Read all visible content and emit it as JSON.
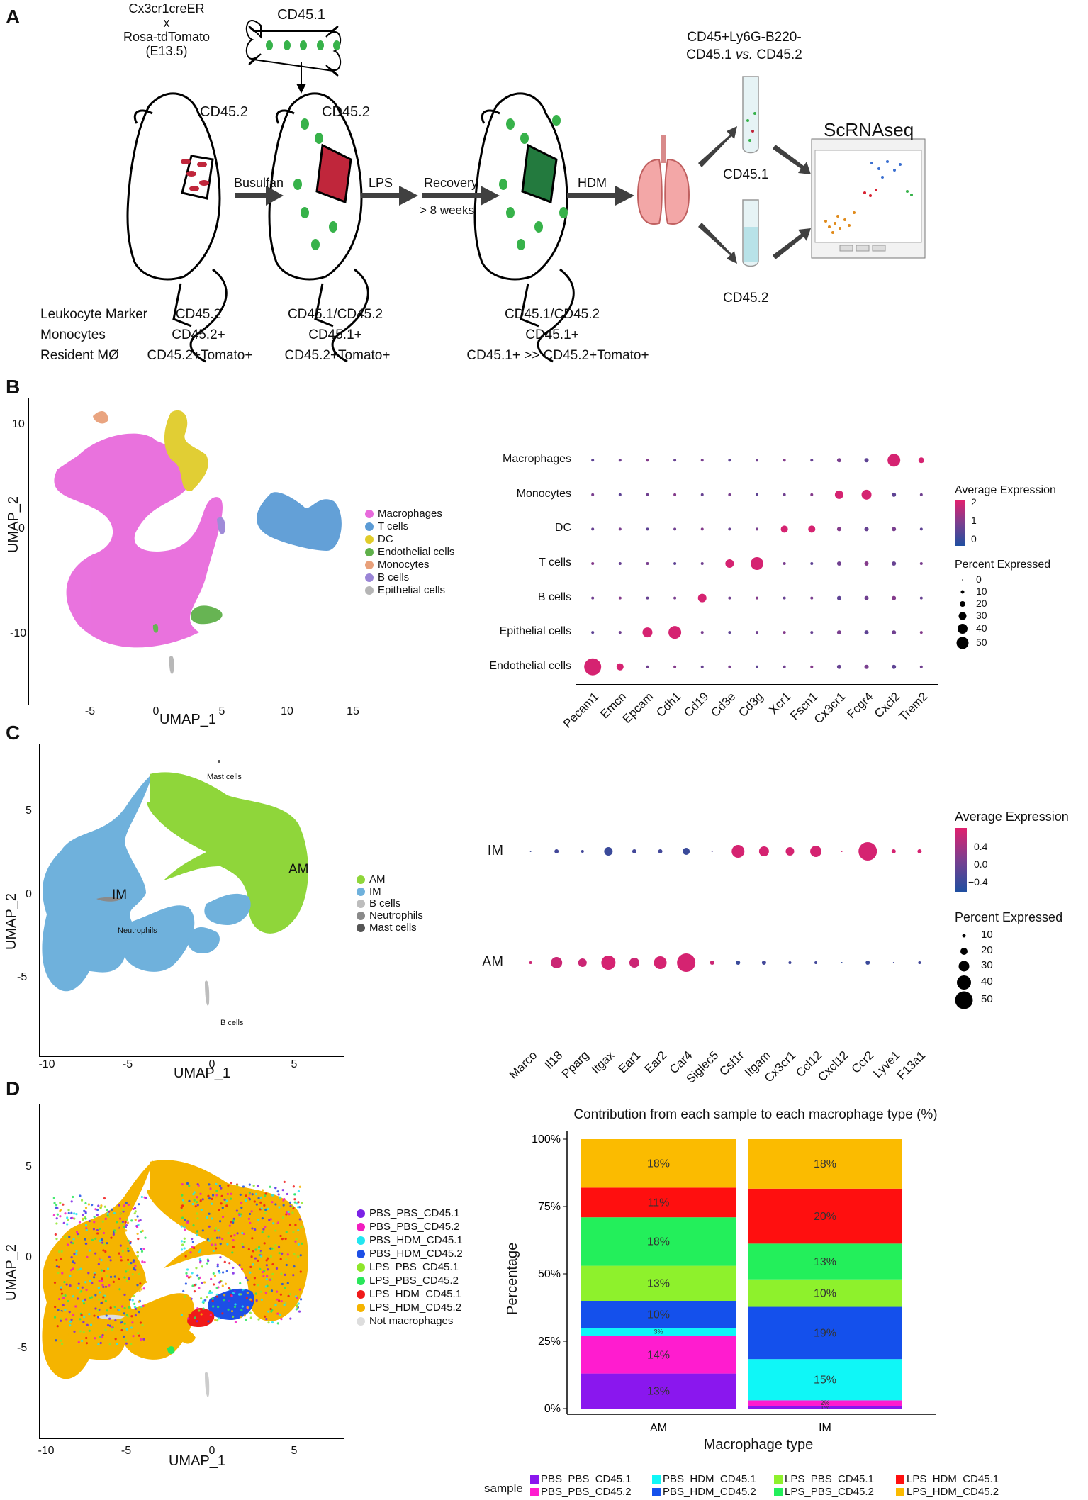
{
  "panelA": {
    "letter": "A",
    "genotype": [
      "Cx3cr1creER",
      "x",
      "Rosa-tdTomato",
      "(E13.5)"
    ],
    "bone_label": "CD45.1",
    "mouse1_label": "CD45.2",
    "mouse2_label": "CD45.2",
    "busulfan": "Busulfan",
    "lps": "LPS",
    "recovery": "Recovery",
    "weeks": "> 8 weeks",
    "hdm": "HDM",
    "sort_label_1": "CD45+Ly6G-B220-",
    "sort_label_2a": "CD45.1 ",
    "sort_label_2b": "vs.",
    "sort_label_2c": " CD45.2",
    "tube1": "CD45.1",
    "tube2": "CD45.2",
    "scrnaseq": "ScRNAseq",
    "table": {
      "row_labels": [
        "Leukocyte Marker",
        "Monocytes",
        "Resident MØ"
      ],
      "col1": [
        "CD45.2",
        "CD45.2+",
        "CD45.2+Tomato+"
      ],
      "col2": [
        "CD45.1/CD45.2",
        "CD45.1+",
        "CD45.2+Tomato+"
      ],
      "col3": [
        "CD45.1/CD45.2",
        "CD45.1+",
        "CD45.1+ >> CD45.2+Tomato+"
      ]
    }
  },
  "panelB": {
    "letter": "B",
    "umap": {
      "xlabel": "UMAP_1",
      "ylabel": "UMAP_2",
      "xticks": [
        "-5",
        "0",
        "5",
        "10",
        "15"
      ],
      "yticks": [
        "10",
        "0",
        "-10"
      ],
      "legend": [
        {
          "name": "Macrophages",
          "color": "#e86bdc"
        },
        {
          "name": "T cells",
          "color": "#5b9bd5"
        },
        {
          "name": "DC",
          "color": "#e0cc2a"
        },
        {
          "name": "Endothelial cells",
          "color": "#5fb04a"
        },
        {
          "name": "Monocytes",
          "color": "#e8a07a"
        },
        {
          "name": "B cells",
          "color": "#9a85d6"
        },
        {
          "name": "Epithelial cells",
          "color": "#b5b5b5"
        }
      ]
    },
    "dotplot": {
      "rows": [
        "Macrophages",
        "Monocytes",
        "DC",
        "T cells",
        "B cells",
        "Epithelial cells",
        "Endothelial cells"
      ],
      "genes": [
        "Pecam1",
        "Emcn",
        "Epcam",
        "Cdh1",
        "Cd19",
        "Cd3e",
        "Cd3g",
        "Xcr1",
        "Fscn1",
        "Cx3cr1",
        "Fcgr4",
        "Cxcl2",
        "Trem2"
      ],
      "avg_title": "Average Expression",
      "avg_ticks": [
        "2",
        "1",
        "0"
      ],
      "pct_title": "Percent Expressed",
      "pct_ticks": [
        "0",
        "10",
        "20",
        "30",
        "40",
        "50"
      ]
    }
  },
  "panelC": {
    "letter": "C",
    "umap": {
      "xlabel": "UMAP_1",
      "ylabel": "UMAP_2",
      "xticks": [
        "-10",
        "-5",
        "0",
        "5"
      ],
      "yticks": [
        "5",
        "0",
        "-5"
      ],
      "labels": {
        "mast": "Mast cells",
        "am": "AM",
        "im": "IM",
        "neut": "Neutrophils",
        "b": "B cells"
      },
      "legend": [
        {
          "name": "AM",
          "color": "#8fd63a"
        },
        {
          "name": "IM",
          "color": "#6fb1dc"
        },
        {
          "name": "B cells",
          "color": "#bdbdbd"
        },
        {
          "name": "Neutrophils",
          "color": "#8a8a8a"
        },
        {
          "name": "Mast cells",
          "color": "#555555"
        }
      ]
    },
    "dotplot": {
      "rows": [
        "IM",
        "AM"
      ],
      "genes": [
        "Marco",
        "Il18",
        "Pparg",
        "Itgax",
        "Ear1",
        "Ear2",
        "Car4",
        "Siglec5",
        "Csf1r",
        "Itgam",
        "Cx3cr1",
        "Ccl12",
        "Cxcl12",
        "Ccr2",
        "Lyve1",
        "F13a1"
      ],
      "avg_title": "Average Expression",
      "avg_ticks": [
        "0.4",
        "0.0",
        "−0.4"
      ],
      "pct_title": "Percent Expressed",
      "pct_ticks": [
        "10",
        "20",
        "30",
        "40",
        "50"
      ]
    }
  },
  "panelD": {
    "letter": "D",
    "umap": {
      "xlabel": "UMAP_1",
      "ylabel": "UMAP_2",
      "xticks": [
        "-10",
        "-5",
        "0",
        "5"
      ],
      "yticks": [
        "5",
        "0",
        "-5"
      ],
      "legend": [
        {
          "name": "PBS_PBS_CD45.1",
          "color": "#7b22e6"
        },
        {
          "name": "PBS_PBS_CD45.2",
          "color": "#f21dbf"
        },
        {
          "name": "PBS_HDM_CD45.1",
          "color": "#22e6f0"
        },
        {
          "name": "PBS_HDM_CD45.2",
          "color": "#1d4fe6"
        },
        {
          "name": "LPS_PBS_CD45.1",
          "color": "#8ee62a"
        },
        {
          "name": "LPS_PBS_CD45.2",
          "color": "#2ae65a"
        },
        {
          "name": "LPS_HDM_CD45.1",
          "color": "#f01a1a"
        },
        {
          "name": "LPS_HDM_CD45.2",
          "color": "#f5b400"
        },
        {
          "name": "Not macrophages",
          "color": "#dddddd"
        }
      ]
    }
  },
  "chart_data": {
    "type": "bar",
    "title": "Contribution from each sample to each macrophage type (%)",
    "xlabel": "Macrophage type",
    "ylabel": "Percentage",
    "categories": [
      "AM",
      "IM"
    ],
    "yticks": [
      "0%",
      "25%",
      "50%",
      "75%",
      "100%"
    ],
    "ylim": [
      0,
      100
    ],
    "stacked": true,
    "legend_title": "sample",
    "series": [
      {
        "name": "PBS_PBS_CD45.1",
        "color": "#8a17ee",
        "values": [
          13,
          1
        ],
        "labels": [
          "13%",
          "1%"
        ]
      },
      {
        "name": "PBS_PBS_CD45.2",
        "color": "#ff1ccf",
        "values": [
          14,
          2
        ],
        "labels": [
          "14%",
          "2%"
        ]
      },
      {
        "name": "PBS_HDM_CD45.1",
        "color": "#0ff7f7",
        "values": [
          3,
          15
        ],
        "labels": [
          "3%",
          "15%"
        ]
      },
      {
        "name": "PBS_HDM_CD45.2",
        "color": "#1450ec",
        "values": [
          10,
          19
        ],
        "labels": [
          "10%",
          "19%"
        ]
      },
      {
        "name": "LPS_PBS_CD45.1",
        "color": "#8ef12c",
        "values": [
          13,
          10
        ],
        "labels": [
          "13%",
          "10%"
        ]
      },
      {
        "name": "LPS_PBS_CD45.2",
        "color": "#23ef5b",
        "values": [
          18,
          13
        ],
        "labels": [
          "18%",
          "13%"
        ]
      },
      {
        "name": "LPS_HDM_CD45.1",
        "color": "#ff0f0f",
        "values": [
          11,
          20
        ],
        "labels": [
          "11%",
          "20%"
        ]
      },
      {
        "name": "LPS_HDM_CD45.2",
        "color": "#fbbb00",
        "values": [
          18,
          18
        ],
        "labels": [
          "18%",
          "18%"
        ]
      }
    ]
  }
}
